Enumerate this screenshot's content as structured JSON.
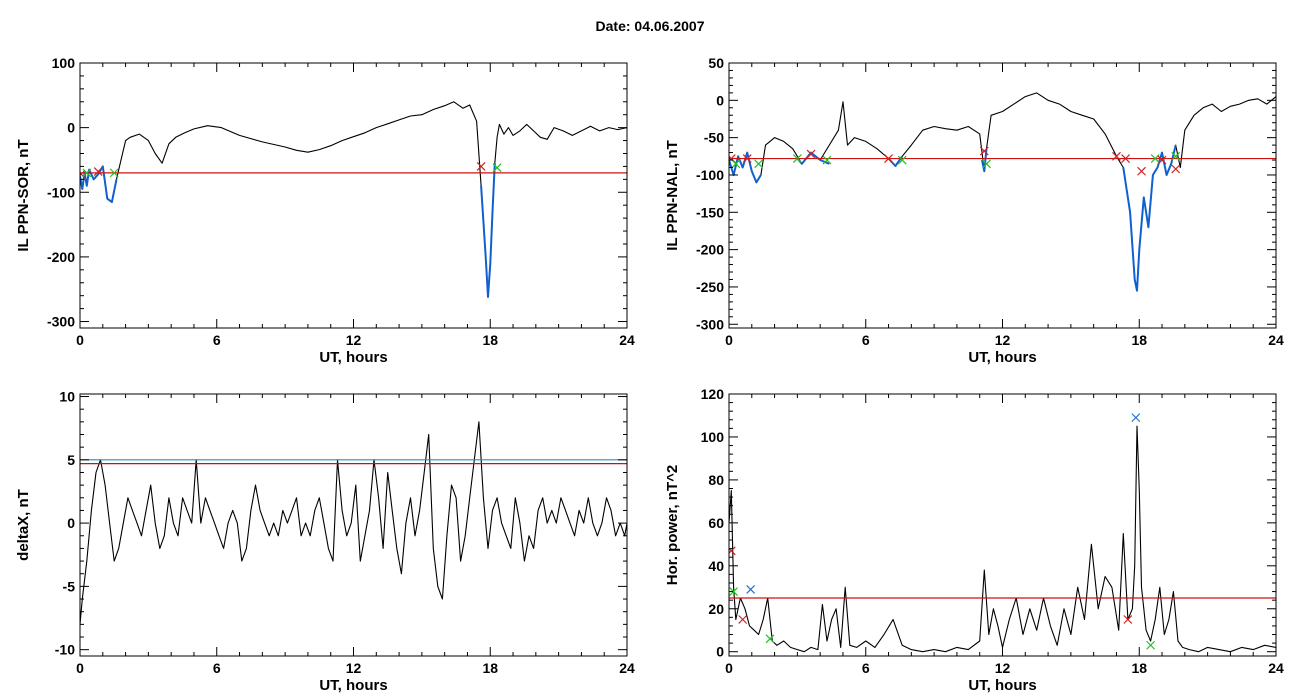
{
  "page": {
    "title": "Date:  04.06.2007"
  },
  "colors": {
    "trace": "#000000",
    "threshold": "#d01010",
    "threshold_alt": "#1f8fc8",
    "highlight": "#1060d0",
    "marker_red": "#d02020",
    "marker_green": "#20c020",
    "marker_blue": "#2070d0"
  },
  "chart_data": [
    {
      "type": "line",
      "xlabel": "UT, hours",
      "ylabel": "IL PPN-SOR, nT",
      "xlim": [
        0,
        24
      ],
      "ylim": [
        -310,
        100
      ],
      "xticks": [
        0,
        6,
        12,
        18,
        24
      ],
      "yticks": [
        100,
        0,
        -100,
        -200,
        -300
      ],
      "grid": false,
      "series": [
        {
          "style": "black",
          "x": [
            0,
            0.1,
            0.2,
            0.3,
            0.4,
            0.6,
            0.8,
            1.0,
            1.2,
            1.4,
            1.6,
            1.8,
            2.0,
            2.2,
            2.6,
            3.0,
            3.3,
            3.6,
            3.9,
            4.2,
            4.6,
            5.0,
            5.6,
            6.2,
            7.0,
            8.0,
            9.0,
            9.5,
            10.0,
            10.5,
            11.0,
            11.5,
            12.0,
            12.5,
            13.0,
            13.5,
            14.0,
            14.5,
            15.0,
            15.5,
            16.0,
            16.4,
            16.8,
            17.1,
            17.4,
            17.6,
            17.8,
            17.9,
            18.0,
            18.1,
            18.2,
            18.3,
            18.4,
            18.6,
            18.8,
            19.0,
            19.3,
            19.6,
            19.9,
            20.2,
            20.5,
            20.8,
            21.2,
            21.6,
            22.0,
            22.4,
            22.8,
            23.2,
            23.6,
            24.0
          ],
          "y": [
            -75,
            -95,
            -70,
            -90,
            -65,
            -80,
            -72,
            -60,
            -110,
            -115,
            -80,
            -50,
            -20,
            -15,
            -10,
            -20,
            -40,
            -55,
            -25,
            -15,
            -8,
            -2,
            3,
            0,
            -12,
            -22,
            -30,
            -35,
            -38,
            -34,
            -28,
            -20,
            -14,
            -8,
            0,
            6,
            12,
            18,
            20,
            28,
            34,
            40,
            30,
            35,
            10,
            -90,
            -200,
            -262,
            -210,
            -130,
            -55,
            -15,
            5,
            -10,
            0,
            -12,
            -5,
            5,
            -5,
            -15,
            -18,
            0,
            -5,
            -12,
            -5,
            2,
            -5,
            0,
            -3,
            0
          ]
        },
        {
          "style": "highlight",
          "x": [
            0,
            0.1,
            0.2,
            0.3,
            0.4,
            0.6,
            0.8,
            1.0,
            1.2,
            1.4,
            1.6
          ],
          "y": [
            -75,
            -95,
            -70,
            -90,
            -65,
            -80,
            -72,
            -60,
            -110,
            -115,
            -80
          ]
        },
        {
          "style": "highlight",
          "x": [
            17.6,
            17.8,
            17.9,
            18.0,
            18.1,
            18.2
          ],
          "y": [
            -90,
            -200,
            -262,
            -210,
            -130,
            -55
          ]
        }
      ],
      "hlines": [
        {
          "y": -70,
          "style": "red"
        }
      ],
      "markers": [
        {
          "x": 0.05,
          "y": -72,
          "color": "red"
        },
        {
          "x": 0.3,
          "y": -70,
          "color": "green"
        },
        {
          "x": 0.8,
          "y": -68,
          "color": "red"
        },
        {
          "x": 1.5,
          "y": -70,
          "color": "green"
        },
        {
          "x": 17.6,
          "y": -60,
          "color": "red"
        },
        {
          "x": 18.3,
          "y": -62,
          "color": "green"
        }
      ]
    },
    {
      "type": "line",
      "xlabel": "UT, hours",
      "ylabel": "IL PPN-NAL, nT",
      "xlim": [
        0,
        24
      ],
      "ylim": [
        -305,
        50
      ],
      "xticks": [
        0,
        6,
        12,
        18,
        24
      ],
      "yticks": [
        50,
        0,
        -50,
        -100,
        -150,
        -200,
        -250,
        -300
      ],
      "grid": false,
      "series": [
        {
          "style": "black",
          "x": [
            0,
            0.2,
            0.4,
            0.6,
            0.8,
            1.0,
            1.2,
            1.4,
            1.6,
            1.8,
            2.0,
            2.4,
            2.8,
            3.2,
            3.6,
            4.0,
            4.4,
            4.8,
            5.0,
            5.2,
            5.5,
            6.0,
            6.5,
            7.0,
            7.3,
            7.6,
            8.0,
            8.5,
            9.0,
            9.5,
            10.0,
            10.5,
            11.0,
            11.2,
            11.3,
            11.5,
            12.0,
            12.5,
            13.0,
            13.5,
            14.0,
            14.5,
            15.0,
            15.5,
            16.0,
            16.5,
            17.0,
            17.3,
            17.6,
            17.8,
            17.9,
            18.0,
            18.2,
            18.4,
            18.6,
            18.8,
            19.0,
            19.2,
            19.4,
            19.6,
            19.8,
            20.0,
            20.4,
            20.8,
            21.2,
            21.6,
            22.0,
            22.4,
            22.8,
            23.2,
            23.6,
            24.0
          ],
          "y": [
            -80,
            -100,
            -75,
            -90,
            -70,
            -95,
            -110,
            -100,
            -60,
            -55,
            -50,
            -55,
            -65,
            -85,
            -70,
            -80,
            -60,
            -40,
            -2,
            -60,
            -50,
            -55,
            -65,
            -78,
            -88,
            -75,
            -60,
            -40,
            -35,
            -38,
            -40,
            -35,
            -45,
            -95,
            -65,
            -20,
            -15,
            -5,
            5,
            10,
            0,
            -5,
            -15,
            -20,
            -25,
            -45,
            -75,
            -90,
            -150,
            -240,
            -255,
            -200,
            -130,
            -170,
            -100,
            -90,
            -70,
            -100,
            -85,
            -60,
            -90,
            -40,
            -20,
            -10,
            -5,
            -15,
            -8,
            -5,
            0,
            2,
            -5,
            5
          ]
        },
        {
          "style": "highlight",
          "x": [
            0,
            0.2,
            0.4,
            0.6,
            0.8,
            1.0,
            1.2,
            1.4
          ],
          "y": [
            -80,
            -100,
            -75,
            -90,
            -70,
            -95,
            -110,
            -100
          ]
        },
        {
          "style": "highlight",
          "x": [
            3.0,
            3.2,
            3.6,
            4.0,
            4.4
          ],
          "y": [
            -78,
            -85,
            -70,
            -80,
            -85
          ]
        },
        {
          "style": "highlight",
          "x": [
            7.0,
            7.3,
            7.6
          ],
          "y": [
            -78,
            -88,
            -75
          ]
        },
        {
          "style": "highlight",
          "x": [
            11.1,
            11.2,
            11.3
          ],
          "y": [
            -80,
            -95,
            -65
          ]
        },
        {
          "style": "highlight",
          "x": [
            17.3,
            17.6,
            17.8,
            17.9,
            18.0,
            18.2,
            18.4,
            18.6,
            18.8,
            19.0,
            19.2,
            19.4,
            19.6
          ],
          "y": [
            -90,
            -150,
            -240,
            -255,
            -200,
            -130,
            -170,
            -100,
            -90,
            -70,
            -100,
            -85,
            -60
          ]
        }
      ],
      "hlines": [
        {
          "y": -78,
          "style": "red"
        }
      ],
      "markers": [
        {
          "x": 0.1,
          "y": -78,
          "color": "red"
        },
        {
          "x": 0.3,
          "y": -85,
          "color": "green"
        },
        {
          "x": 0.8,
          "y": -78,
          "color": "red"
        },
        {
          "x": 1.3,
          "y": -85,
          "color": "green"
        },
        {
          "x": 3.0,
          "y": -78,
          "color": "green"
        },
        {
          "x": 3.6,
          "y": -72,
          "color": "red"
        },
        {
          "x": 4.3,
          "y": -80,
          "color": "green"
        },
        {
          "x": 7.0,
          "y": -78,
          "color": "red"
        },
        {
          "x": 7.6,
          "y": -80,
          "color": "green"
        },
        {
          "x": 11.2,
          "y": -68,
          "color": "red"
        },
        {
          "x": 11.3,
          "y": -85,
          "color": "green"
        },
        {
          "x": 17.0,
          "y": -75,
          "color": "red"
        },
        {
          "x": 17.4,
          "y": -78,
          "color": "red"
        },
        {
          "x": 18.1,
          "y": -95,
          "color": "red"
        },
        {
          "x": 18.7,
          "y": -78,
          "color": "green"
        },
        {
          "x": 19.0,
          "y": -80,
          "color": "red"
        },
        {
          "x": 19.6,
          "y": -75,
          "color": "green"
        },
        {
          "x": 19.6,
          "y": -92,
          "color": "red"
        }
      ]
    },
    {
      "type": "line",
      "xlabel": "UT, hours",
      "ylabel": "deltaX, nT",
      "xlim": [
        0,
        24
      ],
      "ylim": [
        -10.5,
        10.2
      ],
      "xticks": [
        0,
        6,
        12,
        18,
        24
      ],
      "yticks": [
        10,
        5,
        0,
        -5,
        -10
      ],
      "grid": false,
      "series": [
        {
          "style": "black",
          "x": [
            0,
            0.1,
            0.3,
            0.5,
            0.7,
            0.9,
            1.1,
            1.3,
            1.5,
            1.7,
            1.9,
            2.1,
            2.3,
            2.5,
            2.7,
            2.9,
            3.1,
            3.3,
            3.5,
            3.7,
            3.9,
            4.1,
            4.3,
            4.5,
            4.7,
            4.9,
            5.1,
            5.3,
            5.5,
            5.7,
            5.9,
            6.1,
            6.3,
            6.5,
            6.7,
            6.9,
            7.1,
            7.3,
            7.5,
            7.7,
            7.9,
            8.1,
            8.3,
            8.5,
            8.7,
            8.9,
            9.1,
            9.3,
            9.5,
            9.7,
            9.9,
            10.1,
            10.3,
            10.5,
            10.7,
            10.9,
            11.1,
            11.3,
            11.5,
            11.7,
            11.9,
            12.1,
            12.3,
            12.5,
            12.7,
            12.9,
            13.1,
            13.3,
            13.5,
            13.7,
            13.9,
            14.1,
            14.3,
            14.5,
            14.7,
            14.9,
            15.1,
            15.3,
            15.5,
            15.7,
            15.9,
            16.1,
            16.3,
            16.5,
            16.7,
            16.9,
            17.1,
            17.3,
            17.5,
            17.7,
            17.9,
            18.1,
            18.3,
            18.5,
            18.7,
            18.9,
            19.1,
            19.3,
            19.5,
            19.7,
            19.9,
            20.1,
            20.3,
            20.5,
            20.7,
            20.9,
            21.1,
            21.3,
            21.5,
            21.7,
            21.9,
            22.1,
            22.3,
            22.5,
            22.7,
            22.9,
            23.1,
            23.3,
            23.5,
            23.7,
            23.9,
            24.0
          ],
          "y": [
            -8,
            -6,
            -3,
            1,
            4,
            5,
            3,
            0,
            -3,
            -2,
            0,
            2,
            1,
            0,
            -1,
            1,
            3,
            0,
            -2,
            -1,
            2,
            0,
            -1,
            2,
            1,
            0,
            5,
            0,
            2,
            1,
            0,
            -1,
            -2,
            0,
            1,
            0,
            -3,
            -2,
            1,
            3,
            1,
            0,
            -1,
            0,
            -1,
            1,
            0,
            1,
            2,
            -1,
            0,
            -1,
            1,
            2,
            0,
            -2,
            -3,
            5,
            1,
            -1,
            0,
            3,
            -3,
            -1,
            1,
            5,
            2,
            -2,
            4,
            1,
            -2,
            -4,
            0,
            2,
            -1,
            1,
            4,
            7,
            -2,
            -5,
            -6,
            -1,
            3,
            2,
            -3,
            -1,
            2,
            5,
            8,
            2,
            -2,
            1,
            2,
            0,
            -1,
            -2,
            2,
            0,
            -3,
            -1,
            -2,
            1,
            2,
            0,
            1,
            0,
            2,
            1,
            0,
            -1,
            1,
            0,
            2,
            0,
            -1,
            0,
            2,
            1,
            -1,
            0,
            -1,
            0
          ]
        }
      ],
      "hlines": [
        {
          "y": 5.0,
          "style": "blue"
        },
        {
          "y": 4.7,
          "style": "red"
        }
      ],
      "markers": []
    },
    {
      "type": "line",
      "xlabel": "UT, hours",
      "ylabel": "Hor. power, nT^2",
      "xlim": [
        0,
        24
      ],
      "ylim": [
        -2,
        120
      ],
      "xticks": [
        0,
        6,
        12,
        18,
        24
      ],
      "yticks": [
        120,
        100,
        80,
        60,
        40,
        20,
        0
      ],
      "grid": false,
      "series": [
        {
          "style": "black",
          "x": [
            0,
            0.1,
            0.2,
            0.3,
            0.5,
            0.7,
            0.9,
            1.1,
            1.3,
            1.5,
            1.7,
            1.9,
            2.1,
            2.4,
            2.7,
            3.0,
            3.3,
            3.6,
            3.9,
            4.1,
            4.3,
            4.5,
            4.7,
            4.9,
            5.1,
            5.3,
            5.6,
            6.0,
            6.4,
            6.8,
            7.2,
            7.6,
            8.0,
            8.5,
            9.0,
            9.5,
            10.0,
            10.5,
            11.0,
            11.2,
            11.4,
            11.6,
            11.8,
            12.0,
            12.3,
            12.6,
            12.9,
            13.2,
            13.5,
            13.8,
            14.1,
            14.4,
            14.7,
            15.0,
            15.3,
            15.6,
            15.9,
            16.2,
            16.5,
            16.8,
            17.1,
            17.3,
            17.5,
            17.7,
            17.8,
            17.9,
            18.0,
            18.1,
            18.3,
            18.5,
            18.7,
            18.9,
            19.1,
            19.3,
            19.5,
            19.7,
            19.9,
            20.2,
            20.6,
            21.0,
            21.5,
            22.0,
            22.5,
            23.0,
            23.5,
            24.0
          ],
          "y": [
            60,
            75,
            30,
            15,
            25,
            20,
            12,
            10,
            8,
            15,
            25,
            5,
            3,
            5,
            2,
            1,
            0,
            2,
            1,
            22,
            5,
            15,
            20,
            2,
            30,
            3,
            2,
            5,
            2,
            8,
            15,
            3,
            1,
            0,
            1,
            0,
            2,
            1,
            5,
            38,
            8,
            20,
            12,
            2,
            15,
            25,
            8,
            20,
            10,
            25,
            12,
            3,
            20,
            8,
            30,
            15,
            50,
            20,
            35,
            30,
            10,
            55,
            15,
            20,
            40,
            105,
            75,
            30,
            10,
            5,
            15,
            30,
            8,
            15,
            28,
            5,
            2,
            1,
            0,
            2,
            1,
            0,
            2,
            1,
            3,
            2
          ]
        }
      ],
      "hlines": [
        {
          "y": 25,
          "style": "red"
        }
      ],
      "markers": [
        {
          "x": 0.1,
          "y": 47,
          "color": "red"
        },
        {
          "x": 0.2,
          "y": 28,
          "color": "green"
        },
        {
          "x": 0.6,
          "y": 15,
          "color": "red"
        },
        {
          "x": 0.95,
          "y": 29,
          "color": "blue"
        },
        {
          "x": 1.8,
          "y": 6,
          "color": "green"
        },
        {
          "x": 17.5,
          "y": 15,
          "color": "red"
        },
        {
          "x": 17.85,
          "y": 109,
          "color": "blue"
        },
        {
          "x": 18.5,
          "y": 3,
          "color": "green"
        }
      ]
    }
  ]
}
